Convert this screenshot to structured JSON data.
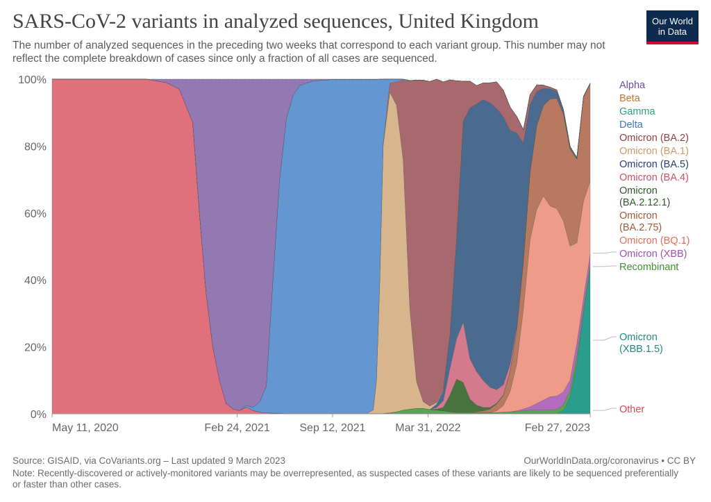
{
  "title": "SARS-CoV-2 variants in analyzed sequences, United Kingdom",
  "subtitle": "The number of analyzed sequences in the preceding two weeks that correspond to each variant group. This number may not reflect the complete breakdown of cases since only a fraction of all cases are sequenced.",
  "logo": {
    "line1": "Our World",
    "line2": "in Data"
  },
  "footer": {
    "source": "Source: GISAID, via CoVariants.org – Last updated 9 March 2023",
    "url": "OurWorldInData.org/coronavirus • CC BY",
    "note": "Note: Recently-discovered or actively-monitored variants may be overrepresented, as suspected cases of these variants are likely to be sequenced preferentially or faster than other cases."
  },
  "chart_data": {
    "type": "area",
    "stacked": true,
    "ylim": [
      0,
      100
    ],
    "y_ticks": [
      "0%",
      "20%",
      "40%",
      "60%",
      "80%",
      "100%"
    ],
    "x_ticks": [
      "May 11, 2020",
      "Feb 24, 2021",
      "Sep 12, 2021",
      "Mar 31, 2022",
      "Feb 27, 2023"
    ],
    "x": [
      "2020-02-02",
      "2020-05-11",
      "2020-08-17",
      "2020-09-28",
      "2020-10-26",
      "2020-11-23",
      "2020-12-07",
      "2020-12-21",
      "2021-01-04",
      "2021-01-18",
      "2021-02-01",
      "2021-02-15",
      "2021-03-01",
      "2021-03-15",
      "2021-03-29",
      "2021-04-12",
      "2021-04-26",
      "2021-05-10",
      "2021-05-24",
      "2021-06-07",
      "2021-06-21",
      "2021-07-05",
      "2021-08-02",
      "2021-09-12",
      "2021-10-25",
      "2021-11-22",
      "2021-12-06",
      "2021-12-13",
      "2021-12-20",
      "2021-12-27",
      "2022-01-10",
      "2022-01-24",
      "2022-02-07",
      "2022-02-21",
      "2022-03-07",
      "2022-03-21",
      "2022-04-04",
      "2022-04-18",
      "2022-05-02",
      "2022-05-16",
      "2022-05-30",
      "2022-06-13",
      "2022-06-27",
      "2022-07-11",
      "2022-07-25",
      "2022-08-08",
      "2022-08-22",
      "2022-09-05",
      "2022-09-19",
      "2022-10-03",
      "2022-10-17",
      "2022-10-31",
      "2022-11-14",
      "2022-11-28",
      "2022-12-12",
      "2022-12-26",
      "2023-01-09",
      "2023-01-23",
      "2023-02-06",
      "2023-02-20",
      "2023-03-06"
    ],
    "series": [
      {
        "name": "Other",
        "color": "#e0707b",
        "values": [
          100,
          100,
          100,
          99,
          97,
          87,
          60,
          36,
          20,
          10,
          3,
          1.5,
          1,
          2,
          1,
          0.5,
          0.3,
          0.2,
          0.2,
          0.1,
          0.1,
          0.1,
          0.1,
          0.1,
          0.1,
          0.1,
          0.1,
          0.1,
          0.1,
          0.1,
          0.1,
          0.1,
          0.1,
          0.1,
          0.1,
          0.1,
          0.1,
          0.1,
          0.1,
          0.1,
          0.1,
          0.1,
          0.1,
          0.1,
          0.1,
          0.1,
          0.1,
          0.1,
          0.1,
          0.1,
          0.1,
          0.1,
          0.1,
          0.1,
          0.1,
          0.1,
          0.1,
          0.1,
          0.1,
          0.1,
          0.1
        ]
      },
      {
        "name": "Omicron (XBB.1.5)",
        "color": "#2a9d8f",
        "values": [
          0,
          0,
          0,
          0,
          0,
          0,
          0,
          0,
          0,
          0,
          0,
          0,
          0,
          0,
          0,
          0,
          0,
          0,
          0,
          0,
          0,
          0,
          0,
          0,
          0,
          0,
          0,
          0,
          0,
          0,
          0,
          0,
          0,
          0,
          0,
          0,
          0,
          0,
          0,
          0,
          0,
          0,
          0,
          0,
          0,
          0,
          0,
          0,
          0,
          0,
          0,
          0,
          0,
          0,
          0,
          0,
          1,
          5,
          15,
          30,
          43
        ]
      },
      {
        "name": "Recombinant",
        "color": "#55a84f",
        "values": [
          0,
          0,
          0,
          0,
          0,
          0,
          0,
          0,
          0,
          0,
          0,
          0,
          0,
          0,
          0,
          0,
          0,
          0,
          0,
          0,
          0,
          0,
          0,
          0,
          0,
          0,
          0,
          0,
          0,
          0,
          0.2,
          0.5,
          1,
          1.3,
          1.5,
          1.5,
          1.2,
          1,
          0.8,
          0.5,
          0.3,
          0.3,
          0.3,
          0.3,
          0.3,
          0.3,
          0.3,
          0.4,
          0.5,
          0.6,
          0.8,
          1,
          1,
          1,
          1,
          1.2,
          1.5,
          2,
          2,
          1.5,
          1.5
        ]
      },
      {
        "name": "Omicron (XBB)",
        "color": "#b36bbf",
        "values": [
          0,
          0,
          0,
          0,
          0,
          0,
          0,
          0,
          0,
          0,
          0,
          0,
          0,
          0,
          0,
          0,
          0,
          0,
          0,
          0,
          0,
          0,
          0,
          0,
          0,
          0,
          0,
          0,
          0,
          0,
          0,
          0,
          0,
          0,
          0,
          0,
          0,
          0,
          0,
          0,
          0,
          0,
          0,
          0,
          0,
          0,
          0,
          0,
          0,
          0.2,
          0.5,
          1,
          2,
          3,
          4,
          4,
          4,
          3,
          4,
          3,
          3
        ]
      },
      {
        "name": "Omicron (BQ.1)",
        "color": "#ef9b8a",
        "values": [
          0,
          0,
          0,
          0,
          0,
          0,
          0,
          0,
          0,
          0,
          0,
          0,
          0,
          0,
          0,
          0,
          0,
          0,
          0,
          0,
          0,
          0,
          0,
          0,
          0,
          0,
          0,
          0,
          0,
          0,
          0,
          0,
          0,
          0,
          0,
          0,
          0,
          0,
          0,
          0,
          0,
          0,
          0,
          0,
          0,
          0,
          0.5,
          2,
          6,
          14,
          30,
          50,
          58,
          61,
          57,
          56,
          51,
          40,
          30,
          29,
          22
        ]
      },
      {
        "name": "Omicron (BA.2.75)",
        "color": "#b77a60",
        "values": [
          0,
          0,
          0,
          0,
          0,
          0,
          0,
          0,
          0,
          0,
          0,
          0,
          0,
          0,
          0,
          0,
          0,
          0,
          0,
          0,
          0,
          0,
          0,
          0,
          0,
          0,
          0,
          0,
          0,
          0,
          0,
          0,
          0,
          0,
          0,
          0,
          0,
          0,
          0,
          0,
          0,
          0,
          0,
          0.2,
          0.5,
          1,
          2,
          3,
          6,
          10,
          14,
          20,
          25,
          27,
          32,
          33,
          32,
          29,
          25,
          31,
          29
        ]
      },
      {
        "name": "Omicron (BA.2.12.1)",
        "color": "#48733f",
        "values": [
          0,
          0,
          0,
          0,
          0,
          0,
          0,
          0,
          0,
          0,
          0,
          0,
          0,
          0,
          0,
          0,
          0,
          0,
          0,
          0,
          0,
          0,
          0,
          0,
          0,
          0,
          0,
          0,
          0,
          0,
          0,
          0,
          0,
          0,
          0,
          0,
          0,
          0.3,
          1,
          5,
          10,
          9,
          4,
          2,
          1,
          0.5,
          0.3,
          0.2,
          0.1,
          0,
          0,
          0,
          0,
          0,
          0,
          0,
          0,
          0,
          0,
          0,
          0
        ]
      },
      {
        "name": "Omicron (BA.4)",
        "color": "#d4798e",
        "values": [
          0,
          0,
          0,
          0,
          0,
          0,
          0,
          0,
          0,
          0,
          0,
          0,
          0,
          0,
          0,
          0,
          0,
          0,
          0,
          0,
          0,
          0,
          0,
          0,
          0,
          0,
          0,
          0,
          0,
          0,
          0,
          0,
          0,
          0,
          0,
          0,
          0,
          0.5,
          2,
          8,
          12,
          18,
          12,
          10,
          8,
          6,
          4,
          3,
          2,
          1,
          0.5,
          0.3,
          0.2,
          0.1,
          0,
          0,
          0,
          0,
          0,
          0,
          0
        ]
      },
      {
        "name": "Omicron (BA.5)",
        "color": "#4a6a8f",
        "values": [
          0,
          0,
          0,
          0,
          0,
          0,
          0,
          0,
          0,
          0,
          0,
          0,
          0,
          0,
          0,
          0,
          0,
          0,
          0,
          0,
          0,
          0,
          0,
          0,
          0,
          0,
          0,
          0,
          0,
          0,
          0,
          0,
          0,
          0,
          0,
          0,
          0,
          1,
          3,
          10,
          30,
          60,
          75,
          80,
          84,
          85,
          84,
          80,
          70,
          58,
          35,
          20,
          10,
          5,
          3,
          2,
          1,
          0.5,
          0.3,
          0.2,
          0.1
        ]
      },
      {
        "name": "Omicron (BA.1)",
        "color": "#d7b58d",
        "values": [
          0,
          0,
          0,
          0,
          0,
          0,
          0,
          0,
          0,
          0,
          0,
          0,
          0,
          0,
          0,
          0,
          0,
          0,
          0,
          0,
          0,
          0,
          0,
          0,
          0,
          0,
          1,
          10,
          40,
          80,
          96,
          92,
          75,
          30,
          8,
          2,
          1,
          0.5,
          0.3,
          0.2,
          0.1,
          0,
          0,
          0,
          0,
          0,
          0,
          0,
          0,
          0,
          0,
          0,
          0,
          0,
          0,
          0,
          0,
          0,
          0,
          0,
          0
        ]
      },
      {
        "name": "Omicron (BA.2)",
        "color": "#a8696e",
        "values": [
          0,
          0,
          0,
          0,
          0,
          0,
          0,
          0,
          0,
          0,
          0,
          0,
          0,
          0,
          0,
          0,
          0,
          0,
          0,
          0,
          0,
          0,
          0,
          0,
          0,
          0,
          0,
          0,
          0.1,
          0.5,
          2.7,
          7,
          24,
          68,
          90,
          96,
          97,
          97,
          92,
          76,
          47,
          12,
          8,
          5.5,
          5,
          6,
          8,
          8,
          7,
          5,
          4,
          3,
          2,
          1,
          0.5,
          0.5,
          0.3,
          0.3,
          0.2,
          0.1,
          0.1
        ]
      },
      {
        "name": "Delta",
        "color": "#6496d1",
        "values": [
          0,
          0,
          0,
          0,
          0,
          0,
          0,
          0,
          0,
          0,
          0,
          0,
          0,
          0.5,
          1,
          3,
          8,
          40,
          70,
          88,
          95,
          98,
          99.4,
          99.8,
          99.8,
          99.8,
          98.8,
          89.8,
          59.8,
          19.4,
          1.2,
          0.8,
          0.3,
          0.2,
          0.1,
          0.1,
          0,
          0,
          0,
          0,
          0,
          0,
          0,
          0,
          0,
          0,
          0,
          0,
          0,
          0,
          0,
          0,
          0,
          0,
          0,
          0,
          0,
          0,
          0,
          0,
          0
        ]
      },
      {
        "name": "Gamma",
        "color": "#4aab9a",
        "values": [
          0,
          0,
          0,
          0,
          0,
          0,
          0,
          0,
          0,
          0,
          0,
          0,
          0,
          0,
          0,
          0,
          0,
          0,
          0,
          0,
          0,
          0,
          0,
          0,
          0,
          0,
          0,
          0,
          0,
          0,
          0,
          0,
          0,
          0,
          0,
          0,
          0,
          0,
          0,
          0,
          0,
          0,
          0,
          0,
          0,
          0,
          0,
          0,
          0,
          0,
          0,
          0,
          0,
          0,
          0,
          0,
          0,
          0,
          0,
          0,
          0
        ]
      },
      {
        "name": "Beta",
        "color": "#c7742f",
        "values": [
          0,
          0,
          0,
          0,
          0,
          0,
          0,
          0,
          0,
          0,
          0,
          0,
          0,
          0,
          0,
          0,
          0,
          0,
          0,
          0,
          0,
          0,
          0,
          0,
          0,
          0,
          0,
          0,
          0,
          0,
          0,
          0,
          0,
          0,
          0,
          0,
          0,
          0,
          0,
          0,
          0,
          0,
          0,
          0,
          0,
          0,
          0,
          0,
          0,
          0,
          0,
          0,
          0,
          0,
          0,
          0,
          0,
          0,
          0,
          0,
          0
        ]
      },
      {
        "name": "Alpha",
        "color": "#9478b4",
        "values": [
          0,
          0,
          0,
          1,
          3,
          13,
          40,
          64,
          80,
          90,
          97,
          98.5,
          99,
          97.5,
          98,
          96.5,
          91.7,
          59.8,
          29.8,
          11.9,
          4.9,
          1.9,
          0.5,
          0.1,
          0.1,
          0.1,
          0.1,
          0.1,
          0,
          0,
          0,
          0,
          0,
          0,
          0,
          0,
          0,
          0,
          0,
          0,
          0,
          0,
          0,
          0,
          0,
          0,
          0,
          0,
          0,
          0,
          0,
          0,
          0,
          0,
          0,
          0,
          0,
          0,
          0,
          0,
          0
        ]
      }
    ],
    "legend": [
      {
        "lines": [
          "Alpha"
        ],
        "color": "#6e4c9f"
      },
      {
        "lines": [
          "Beta"
        ],
        "color": "#c7742f"
      },
      {
        "lines": [
          "Gamma"
        ],
        "color": "#2f9e73"
      },
      {
        "lines": [
          "Delta"
        ],
        "color": "#3b74c4"
      },
      {
        "lines": [
          "Omicron (BA.2)"
        ],
        "color": "#8f3f45"
      },
      {
        "lines": [
          "Omicron (BA.1)"
        ],
        "color": "#c79b6a"
      },
      {
        "lines": [
          "Omicron (BA.5)"
        ],
        "color": "#24426b"
      },
      {
        "lines": [
          "Omicron (BA.4)"
        ],
        "color": "#c8506c"
      },
      {
        "lines": [
          "Omicron",
          "(BA.2.12.1)"
        ],
        "color": "#2e5a28"
      },
      {
        "lines": [
          "Omicron",
          "(BA.2.75)"
        ],
        "color": "#a0583a"
      },
      {
        "lines": [
          "Omicron (BQ.1)"
        ],
        "color": "#e26d58"
      },
      {
        "lines": [
          "Omicron (XBB)"
        ],
        "color": "#a050b0"
      },
      {
        "lines": [
          "Recombinant"
        ],
        "color": "#3f8f2f"
      },
      {
        "lines": [
          "Omicron",
          "(XBB.1.5)"
        ],
        "color": "#1f8a80"
      },
      {
        "lines": [
          "Other"
        ],
        "color": "#d2485a"
      }
    ]
  }
}
